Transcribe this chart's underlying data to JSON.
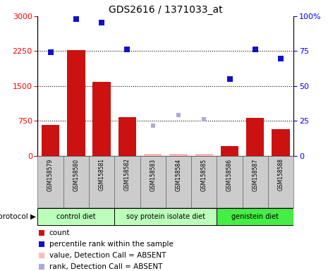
{
  "title": "GDS2616 / 1371033_at",
  "samples": [
    "GSM158579",
    "GSM158580",
    "GSM158581",
    "GSM158582",
    "GSM158583",
    "GSM158584",
    "GSM158585",
    "GSM158586",
    "GSM158587",
    "GSM158588"
  ],
  "bar_values": [
    660,
    2280,
    1590,
    830,
    50,
    50,
    50,
    210,
    820,
    570
  ],
  "bar_absent": [
    false,
    false,
    false,
    false,
    true,
    true,
    true,
    false,
    false,
    false
  ],
  "rank_values": [
    74.3,
    97.8,
    95.7,
    76.3,
    null,
    null,
    null,
    55.0,
    76.3,
    69.7
  ],
  "rank_absent": [
    false,
    false,
    false,
    false,
    true,
    true,
    true,
    false,
    false,
    false
  ],
  "rank_absent_values": [
    null,
    null,
    null,
    null,
    21.7,
    29.0,
    26.3,
    null,
    null,
    null
  ],
  "left_ylim": [
    0,
    3000
  ],
  "right_ylim": [
    0,
    100
  ],
  "left_yticks": [
    0,
    750,
    1500,
    2250,
    3000
  ],
  "right_yticks": [
    0,
    25,
    50,
    75,
    100
  ],
  "bar_color": "#cc1111",
  "bar_absent_color": "#ffbbbb",
  "rank_color": "#1111cc",
  "rank_absent_color": "#aaaadd",
  "groups": [
    {
      "label": "control diet",
      "start": 0,
      "end": 2,
      "color": "#bbffbb"
    },
    {
      "label": "soy protein isolate diet",
      "start": 3,
      "end": 6,
      "color": "#bbffbb"
    },
    {
      "label": "genistein diet",
      "start": 7,
      "end": 9,
      "color": "#44ee44"
    }
  ],
  "legend_items": [
    {
      "color": "#cc1111",
      "label": "count"
    },
    {
      "color": "#1111cc",
      "label": "percentile rank within the sample"
    },
    {
      "color": "#ffbbbb",
      "label": "value, Detection Call = ABSENT"
    },
    {
      "color": "#aaaadd",
      "label": "rank, Detection Call = ABSENT"
    }
  ]
}
